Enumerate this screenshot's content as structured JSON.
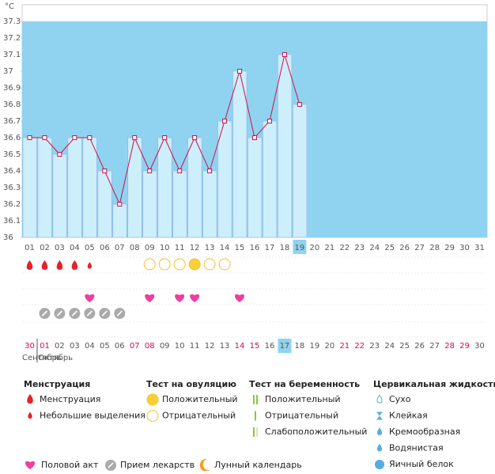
{
  "chart_data": {
    "type": "line",
    "y_unit": "°C",
    "categories": [
      "01",
      "02",
      "03",
      "04",
      "05",
      "06",
      "07",
      "08",
      "09",
      "10",
      "11",
      "12",
      "13",
      "14",
      "15",
      "16",
      "17",
      "18",
      "19",
      "20",
      "21",
      "22",
      "23",
      "24",
      "25",
      "26",
      "27",
      "28",
      "29",
      "30",
      "31"
    ],
    "values": [
      36.6,
      36.6,
      36.5,
      36.6,
      36.6,
      36.4,
      36.2,
      36.6,
      36.4,
      36.6,
      36.4,
      36.6,
      36.4,
      36.7,
      37.0,
      36.6,
      36.7,
      37.1,
      36.8,
      null,
      null,
      null,
      null,
      null,
      null,
      null,
      null,
      null,
      null,
      null,
      null
    ],
    "color": "#d0104c",
    "bar_color": "#cdeefb",
    "background_color": "#8fd3f0",
    "ylim": [
      36,
      37.4
    ],
    "yticks": [
      36,
      36.1,
      36.2,
      36.3,
      36.4,
      36.5,
      36.6,
      36.7,
      36.8,
      36.9,
      37,
      37.1,
      37.2,
      37.3
    ],
    "today": "19",
    "markers": {
      "menstruation_heavy": [
        "01",
        "02",
        "03",
        "04"
      ],
      "menstruation_light": [
        "05"
      ],
      "ovulation_negative": [
        "09",
        "10",
        "11",
        "13",
        "14"
      ],
      "ovulation_positive": [
        "12"
      ],
      "intercourse": [
        "05",
        "09",
        "11",
        "12",
        "15"
      ],
      "medication": [
        "02",
        "03",
        "04",
        "05",
        "06",
        "07"
      ]
    },
    "cycle_dates": [
      "30",
      "01",
      "02",
      "03",
      "04",
      "05",
      "06",
      "07",
      "08",
      "09",
      "10",
      "11",
      "12",
      "13",
      "14",
      "15",
      "16",
      "17",
      "18",
      "19",
      "20",
      "21",
      "22",
      "23",
      "24",
      "25",
      "26",
      "27",
      "28",
      "29",
      "30"
    ],
    "cycle_weekend": [
      true,
      true,
      false,
      false,
      false,
      false,
      false,
      true,
      true,
      false,
      false,
      false,
      false,
      false,
      true,
      true,
      false,
      false,
      false,
      false,
      false,
      true,
      true,
      false,
      false,
      false,
      false,
      false,
      true,
      true,
      false
    ],
    "months": [
      "Сентябрь",
      "Октябрь"
    ]
  },
  "legend": {
    "groups": [
      {
        "title": "Менструация",
        "items": [
          "Менструация",
          "Небольшие выделения"
        ]
      },
      {
        "title": "Тест на овуляцию",
        "items": [
          "Положительный",
          "Отрицательный"
        ]
      },
      {
        "title": "Тест на беременность",
        "items": [
          "Положительный",
          "Отрицательный",
          "Слабоположительный"
        ]
      },
      {
        "title": "Цервикальная жидкость",
        "items": [
          "Сухо",
          "Клейкая",
          "Кремообразная",
          "Водянистая",
          "Яичный белок"
        ]
      }
    ],
    "other": [
      "Половой акт",
      "Прием лекарств",
      "Лунный календарь"
    ]
  }
}
